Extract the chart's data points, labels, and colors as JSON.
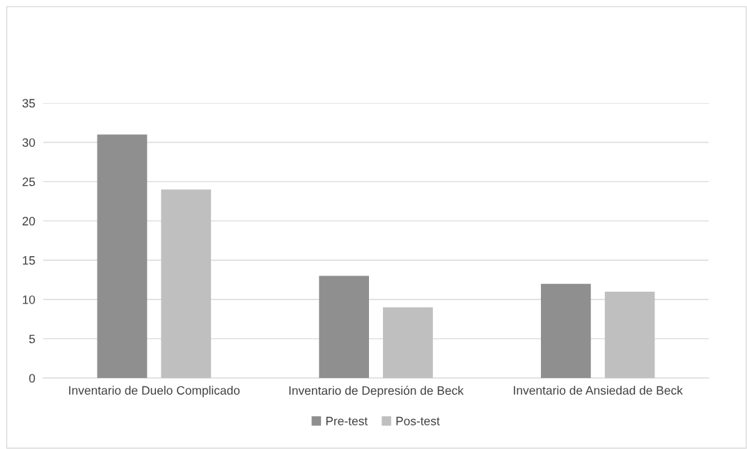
{
  "chart_data": {
    "type": "bar",
    "categories": [
      "Inventario de Duelo Complicado",
      "Inventario de Depresión de Beck",
      "Inventario de Ansiedad de Beck"
    ],
    "series": [
      {
        "name": "Pre-test",
        "color": "#8f8f8f",
        "values": [
          31,
          13,
          12
        ]
      },
      {
        "name": "Pos-test",
        "color": "#bfbfbf",
        "values": [
          24,
          9,
          11
        ]
      }
    ],
    "ylim": [
      0,
      35
    ],
    "yticks": [
      0,
      5,
      10,
      15,
      20,
      25,
      30,
      35
    ],
    "grid": "y",
    "legend": "bottom"
  }
}
